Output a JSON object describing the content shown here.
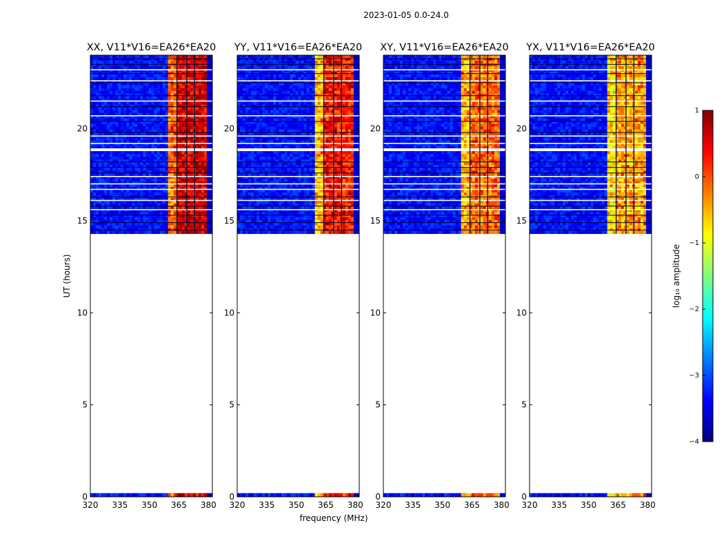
{
  "figure": {
    "suptitle": "2023-01-05 0.0-24.0",
    "xlabel": "frequency (MHz)",
    "ylabel": "UT (hours)",
    "colorbar": {
      "label": "log₁₀ amplitude",
      "ticks": [
        "1",
        "0",
        "−1",
        "−2",
        "−3",
        "−4"
      ],
      "range": [
        -4,
        1
      ],
      "colormap": [
        "#00007f",
        "#0000ff",
        "#007fff",
        "#00ffff",
        "#7fff7f",
        "#ffff00",
        "#ff7f00",
        "#ff0000",
        "#7f0000"
      ]
    }
  },
  "chart_data": {
    "type": "heatmap",
    "baseline": "V11*V16=EA26*EA20",
    "panels": [
      {
        "pol": "XX",
        "title": "XX, V11*V16=EA26*EA20",
        "rfi_level": [
          -0.2,
          0.5,
          0.5
        ]
      },
      {
        "pol": "YY",
        "title": "YY, V11*V16=EA26*EA20",
        "rfi_level": [
          -0.6,
          0.2,
          0.2
        ]
      },
      {
        "pol": "XY",
        "title": "XY, V11*V16=EA26*EA20",
        "rfi_level": [
          -0.6,
          -0.2,
          -0.2
        ]
      },
      {
        "pol": "YX",
        "title": "YX, V11*V16=EA26*EA20",
        "rfi_level": [
          -0.8,
          -0.5,
          -0.5
        ]
      }
    ],
    "x_axis": {
      "label": "frequency (MHz)",
      "range": [
        320,
        382
      ],
      "ticks": [
        "320",
        "335",
        "350",
        "365",
        "380"
      ]
    },
    "y_axis": {
      "label": "UT (hours)",
      "range": [
        0,
        24
      ],
      "ticks": [
        "0",
        "5",
        "10",
        "15",
        "20"
      ]
    },
    "data_time_ranges_hours": [
      [
        0.0,
        0.2
      ],
      [
        14.3,
        24.0
      ]
    ],
    "rfi_band_mhz": [
      359.5,
      378.5
    ],
    "rfi_subbands_mhz": [
      [
        359.5,
        364.0
      ],
      [
        364.0,
        373.0
      ],
      [
        373.0,
        378.5
      ]
    ],
    "background_log_amplitude": -3.3
  }
}
